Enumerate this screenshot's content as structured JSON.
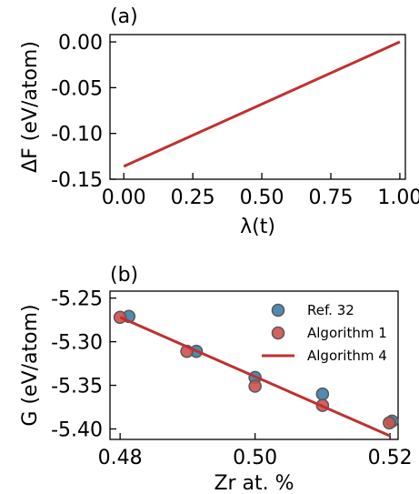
{
  "chart_data": [
    {
      "panel_label": "(a)",
      "type": "line",
      "xlabel": "λ(t)",
      "ylabel": "ΔF (eV/atom)",
      "xlim": [
        -0.05,
        1.02
      ],
      "ylim": [
        -0.15,
        0.008
      ],
      "xticks": [
        0.0,
        0.25,
        0.5,
        0.75,
        1.0
      ],
      "xtick_labels": [
        "0.00",
        "0.25",
        "0.50",
        "0.75",
        "1.00"
      ],
      "yticks": [
        0.0,
        -0.05,
        -0.1,
        -0.15
      ],
      "ytick_labels": [
        "0.00",
        "-0.05",
        "-0.10",
        "-0.15"
      ],
      "series": [
        {
          "color": "#c0302f",
          "x": [
            0.0,
            1.0
          ],
          "y": [
            -0.136,
            0.0
          ]
        }
      ]
    },
    {
      "panel_label": "(b)",
      "type": "scatter",
      "xlabel": "Zr at. %",
      "ylabel": "G (eV/atom)",
      "xlim": [
        0.4785,
        0.5212
      ],
      "ylim": [
        -5.412,
        -5.242
      ],
      "xticks": [
        0.48,
        0.5,
        0.52
      ],
      "xtick_labels": [
        "0.48",
        "0.50",
        "0.52"
      ],
      "yticks": [
        -5.25,
        -5.3,
        -5.35,
        -5.4
      ],
      "ytick_labels": [
        "-5.25",
        "-5.30",
        "-5.35",
        "-5.40"
      ],
      "legend": {
        "placement": "top-right"
      },
      "series": [
        {
          "name": "Ref. 32",
          "kind": "scatter",
          "color": "#3a7fa8",
          "x": [
            0.4813,
            0.4913,
            0.5,
            0.51,
            0.5203
          ],
          "y": [
            -5.271,
            -5.311,
            -5.341,
            -5.36,
            -5.391
          ]
        },
        {
          "name": "Algorithm 1",
          "kind": "scatter",
          "color": "#d0504e",
          "x": [
            0.48,
            0.4899,
            0.5,
            0.51,
            0.5199
          ],
          "y": [
            -5.272,
            -5.311,
            -5.351,
            -5.373,
            -5.393
          ]
        },
        {
          "name": "Algorithm 4",
          "kind": "line",
          "color": "#c0302f",
          "x": [
            0.48,
            0.52
          ],
          "y": [
            -5.272,
            -5.408
          ]
        }
      ]
    }
  ]
}
